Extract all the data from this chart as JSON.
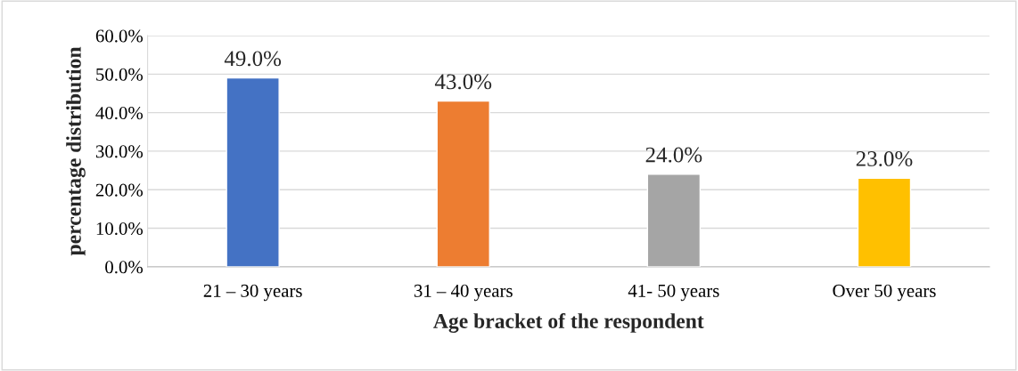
{
  "chart_data": {
    "type": "bar",
    "xlabel": "Age bracket of the respondent",
    "ylabel": "percentage distribution",
    "categories": [
      "21 – 30 years",
      "31 – 40 years",
      "41- 50 years",
      "Over 50 years"
    ],
    "values": [
      49,
      43,
      24,
      23
    ],
    "colors": [
      "#4472c4",
      "#ed7d31",
      "#a5a5a5",
      "#ffc000"
    ],
    "value_labels": [
      "49.0%",
      "43.0%",
      "24.0%",
      "23.0%"
    ],
    "ylim": [
      0,
      60
    ],
    "yticks": [
      {
        "value": 0,
        "label": "0.0%"
      },
      {
        "value": 10,
        "label": "10.0%"
      },
      {
        "value": 20,
        "label": "20.0%"
      },
      {
        "value": 30,
        "label": "30.0%"
      },
      {
        "value": 40,
        "label": "40.0%"
      },
      {
        "value": 50,
        "label": "50.0%"
      },
      {
        "value": 60,
        "label": "60.0%"
      }
    ],
    "grid": "y",
    "legend": false
  }
}
